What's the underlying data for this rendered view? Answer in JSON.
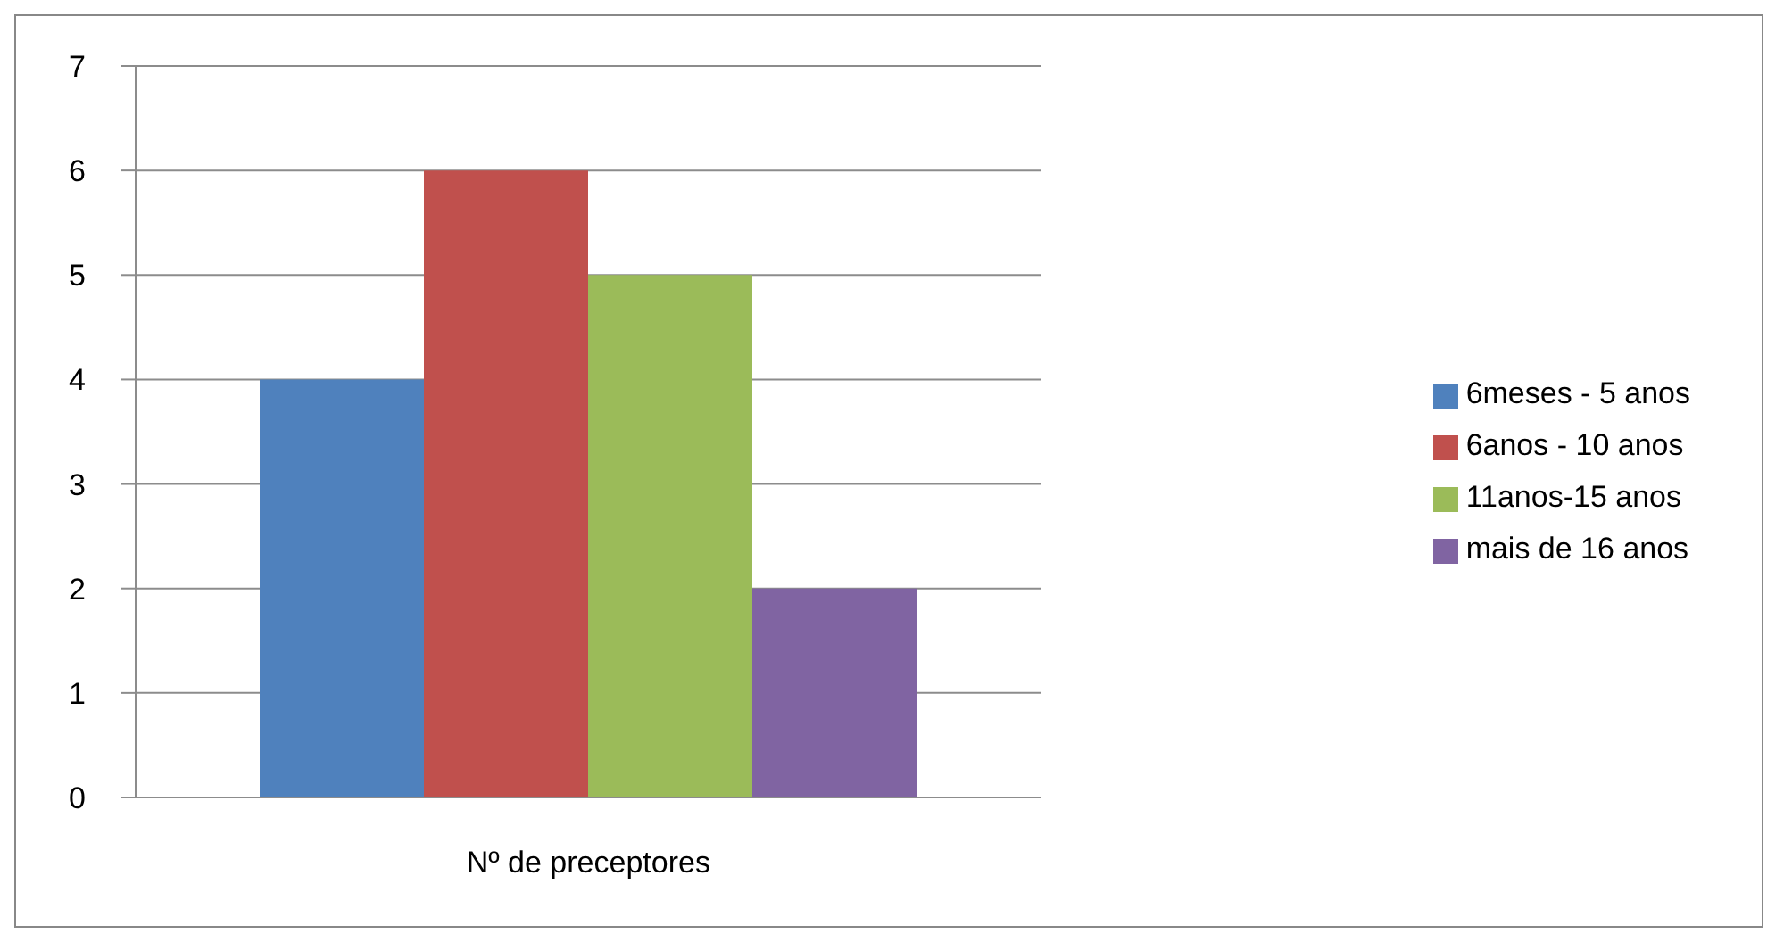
{
  "chart_data": {
    "type": "bar",
    "categories": [
      "Nº de preceptores"
    ],
    "series": [
      {
        "name": "6meses - 5 anos",
        "color": "#4f81bd",
        "values": [
          4
        ]
      },
      {
        "name": "6anos - 10 anos",
        "color": "#c0504d",
        "values": [
          6
        ]
      },
      {
        "name": "11anos-15 anos",
        "color": "#9bbb59",
        "values": [
          5
        ]
      },
      {
        "name": "mais de 16 anos",
        "color": "#8064a2",
        "values": [
          2
        ]
      }
    ],
    "ylim": [
      0,
      7
    ],
    "yticks": [
      0,
      1,
      2,
      3,
      4,
      5,
      6,
      7
    ],
    "grid": "y",
    "legend": "right"
  }
}
